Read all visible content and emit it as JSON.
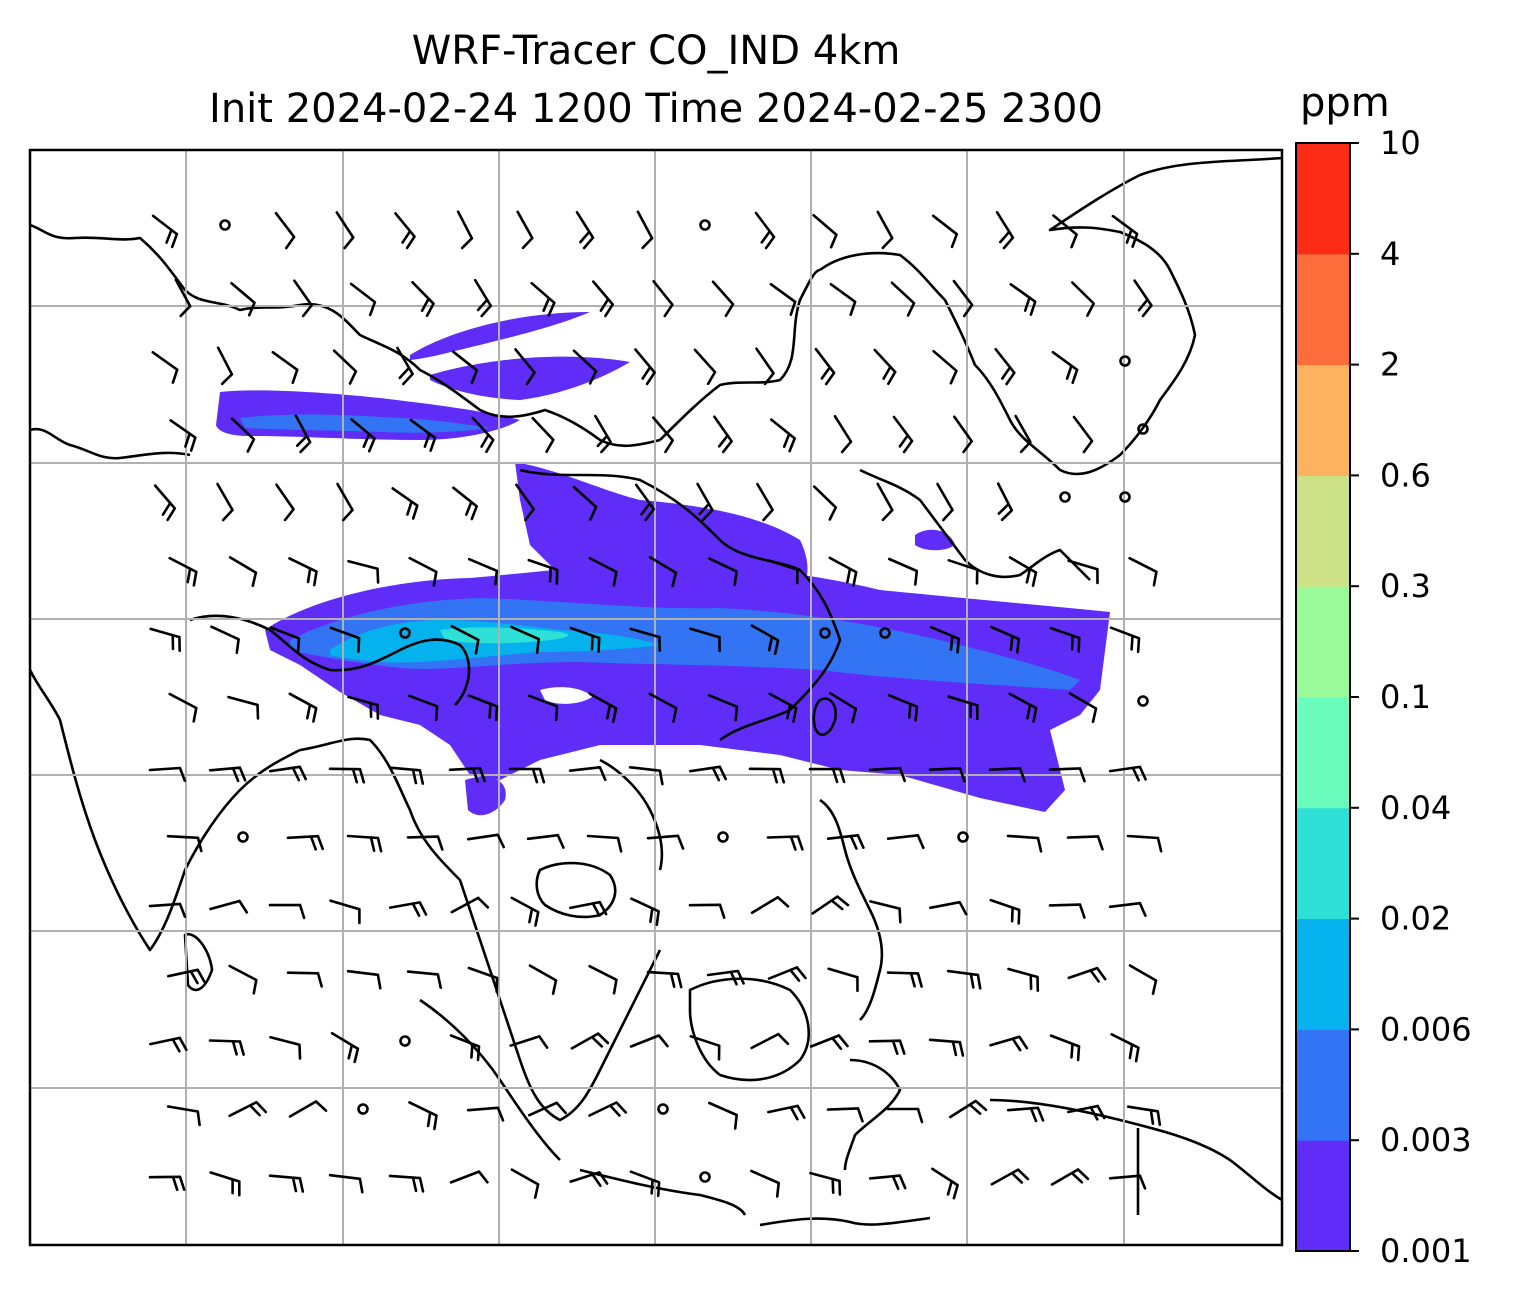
{
  "title_line1": "WRF-Tracer CO_IND 4km",
  "title_line2": "Init 2024-02-24 1200 Time 2024-02-25 2300",
  "colorbar": {
    "unit": "ppm",
    "levels": [
      "0.001",
      "0.003",
      "0.006",
      "0.02",
      "0.04",
      "0.1",
      "0.3",
      "0.6",
      "2",
      "4",
      "10"
    ],
    "colors": [
      "#5f2cf8",
      "#3274f4",
      "#05b2ed",
      "#2ee0d6",
      "#69fcbd",
      "#9afa9a",
      "#cde186",
      "#fcb25f",
      "#fd6c3b",
      "#fc2b16"
    ]
  },
  "map": {
    "tracer_colors": {
      "low": "#5f2cf8",
      "mid": "#3274f4",
      "high": "#05b2ed",
      "peak": "#2ee0d6"
    },
    "gridlines": true,
    "wind_barbs": true,
    "coastlines": true
  }
}
